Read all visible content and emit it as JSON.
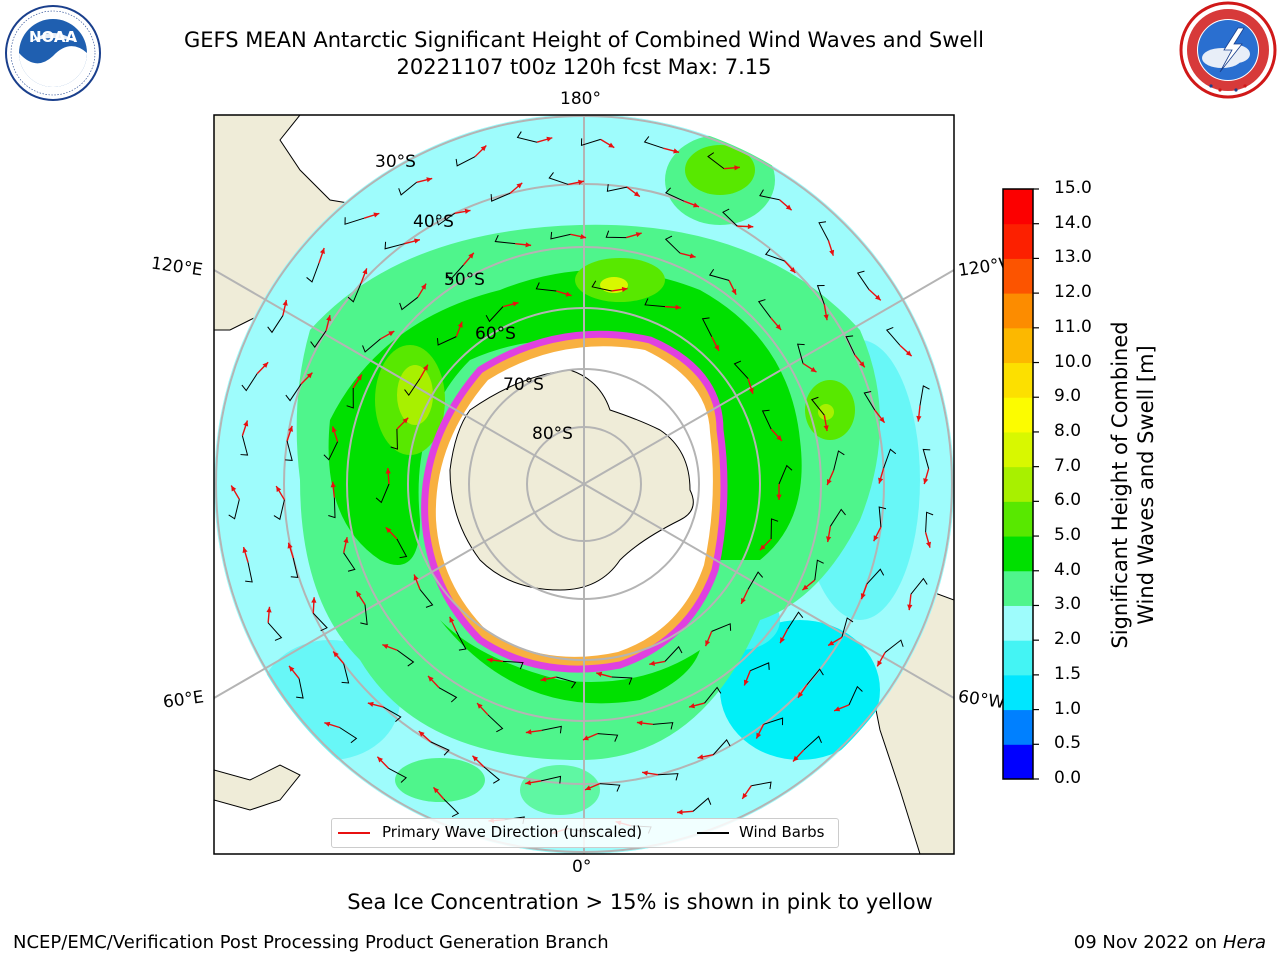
{
  "title": {
    "line1": "GEFS MEAN Antarctic Significant Height of Combined Wind Waves and Swell",
    "line2": "20221107 t00z 120h fcst   Max: 7.15"
  },
  "logos": {
    "noaa": {
      "icon": "noaa-logo-icon",
      "text": "NOAA"
    },
    "nws": {
      "icon": "national-weather-service-logo-icon"
    }
  },
  "map": {
    "projection": "south-polar-stereographic",
    "longitude_labels": {
      "top": "180°",
      "bottom": "0°",
      "upper_left": "120°E",
      "upper_right": "120°W",
      "lower_left": "60°E",
      "lower_right": "60°W"
    },
    "latitude_labels": [
      "30°S",
      "40°S",
      "50°S",
      "60°S",
      "70°S",
      "80°S"
    ],
    "colors": {
      "ocean_low": "#9efcfc",
      "land": "#efecd8",
      "ice": "#ffffff",
      "ice_edge": "#e040e0",
      "wave_dir": "#e81010",
      "wind_barb": "#000000",
      "grid": "#b4b4b4"
    }
  },
  "legend": {
    "primary_wave_label": "Primary Wave Direction (unscaled)",
    "wind_barbs_label": "Wind Barbs"
  },
  "colorbar": {
    "title_line1": "Significant Height of Combined",
    "title_line2": "Wind Waves and Swell [m]",
    "ticks": [
      "0.0",
      "0.5",
      "1.0",
      "1.5",
      "2.0",
      "3.0",
      "4.0",
      "5.0",
      "6.0",
      "7.0",
      "8.0",
      "9.0",
      "10.0",
      "11.0",
      "12.0",
      "13.0",
      "14.0",
      "15.0"
    ],
    "colors": [
      "#0000ff",
      "#0080ff",
      "#00e6ff",
      "#44f4f4",
      "#9efcfc",
      "#4ff58c",
      "#00e000",
      "#58e800",
      "#a8f000",
      "#d8f800",
      "#fcfc00",
      "#fce000",
      "#fcb800",
      "#fc8c00",
      "#fc5400",
      "#fc2000",
      "#fc0000"
    ]
  },
  "note": "Sea Ice Concentration > 15% is shown in pink to yellow",
  "footer": {
    "left": "NCEP/EMC/Verification Post Processing Product Generation Branch",
    "right_date": "09 Nov 2022 on",
    "right_machine": "Hera"
  }
}
